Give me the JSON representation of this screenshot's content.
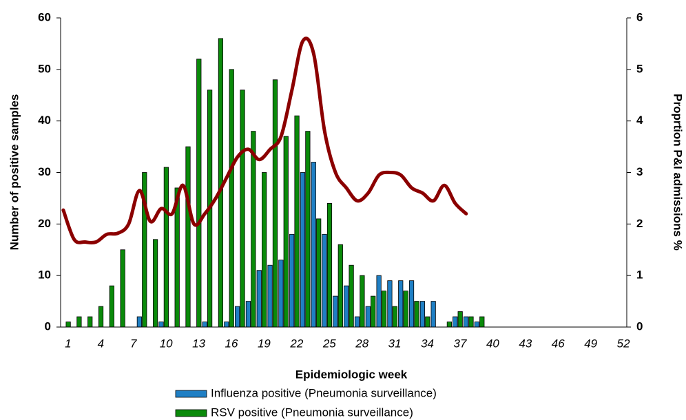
{
  "chart_data": {
    "type": "bar-line",
    "x_label": "Epidemiologic week",
    "y_label": "Number of positive samples",
    "y2_label": "Proprtion P&I admissions %",
    "categories": [
      1,
      null,
      null,
      4,
      null,
      null,
      7,
      null,
      null,
      10,
      null,
      null,
      13,
      null,
      null,
      16,
      null,
      null,
      19,
      null,
      null,
      22,
      null,
      null,
      25,
      null,
      null,
      28,
      null,
      null,
      31,
      null,
      null,
      34,
      null,
      null,
      37,
      null,
      null,
      40,
      null,
      null,
      43,
      null,
      null,
      46,
      null,
      null,
      49,
      null,
      null,
      52
    ],
    "ylim": [
      0,
      60
    ],
    "yticks": [
      0,
      10,
      20,
      30,
      40,
      50,
      60
    ],
    "y2lim": [
      0,
      6
    ],
    "y2ticks": [
      0,
      1,
      2,
      3,
      4,
      5,
      6
    ],
    "series": [
      {
        "name": "Influenza positive (Pneumonia surveillance)",
        "type": "bar",
        "color": "#1f7fc4",
        "values": [
          0,
          0,
          0,
          0,
          0,
          0,
          0,
          2,
          0,
          1,
          0,
          0,
          0,
          1,
          0,
          1,
          4,
          5,
          11,
          12,
          13,
          18,
          30,
          32,
          18,
          6,
          8,
          2,
          4,
          10,
          9,
          9,
          9,
          5,
          5,
          0,
          2,
          2,
          1,
          null,
          null,
          null,
          null,
          null,
          null,
          null,
          null,
          null,
          null,
          null,
          null,
          null
        ]
      },
      {
        "name": "RSV positive (Pneumonia surveillance)",
        "type": "bar",
        "color": "#0a8a0a",
        "values": [
          1,
          2,
          2,
          4,
          8,
          15,
          0,
          30,
          17,
          31,
          27,
          35,
          52,
          46,
          56,
          50,
          46,
          38,
          30,
          48,
          37,
          41,
          38,
          21,
          24,
          16,
          12,
          10,
          6,
          7,
          4,
          7,
          5,
          2,
          0,
          1,
          3,
          2,
          2,
          null,
          null,
          null,
          null,
          null,
          null,
          null,
          null,
          null,
          null,
          null,
          null,
          null
        ]
      },
      {
        "name": "Proportion P&I admissions",
        "type": "line",
        "axis": "y2",
        "color": "#8b0000",
        "values": [
          2.27,
          1.7,
          1.65,
          1.65,
          1.8,
          1.82,
          2.0,
          2.65,
          2.05,
          2.3,
          2.2,
          2.75,
          2.0,
          2.2,
          2.5,
          2.9,
          3.3,
          3.45,
          3.25,
          3.45,
          3.7,
          4.6,
          5.55,
          5.3,
          3.8,
          3.0,
          2.7,
          2.45,
          2.6,
          2.95,
          3.0,
          2.95,
          2.7,
          2.6,
          2.45,
          2.75,
          2.4,
          2.2,
          null,
          null,
          null,
          null,
          null,
          null,
          null,
          null,
          null,
          null,
          null,
          null,
          null,
          null
        ]
      }
    ]
  }
}
